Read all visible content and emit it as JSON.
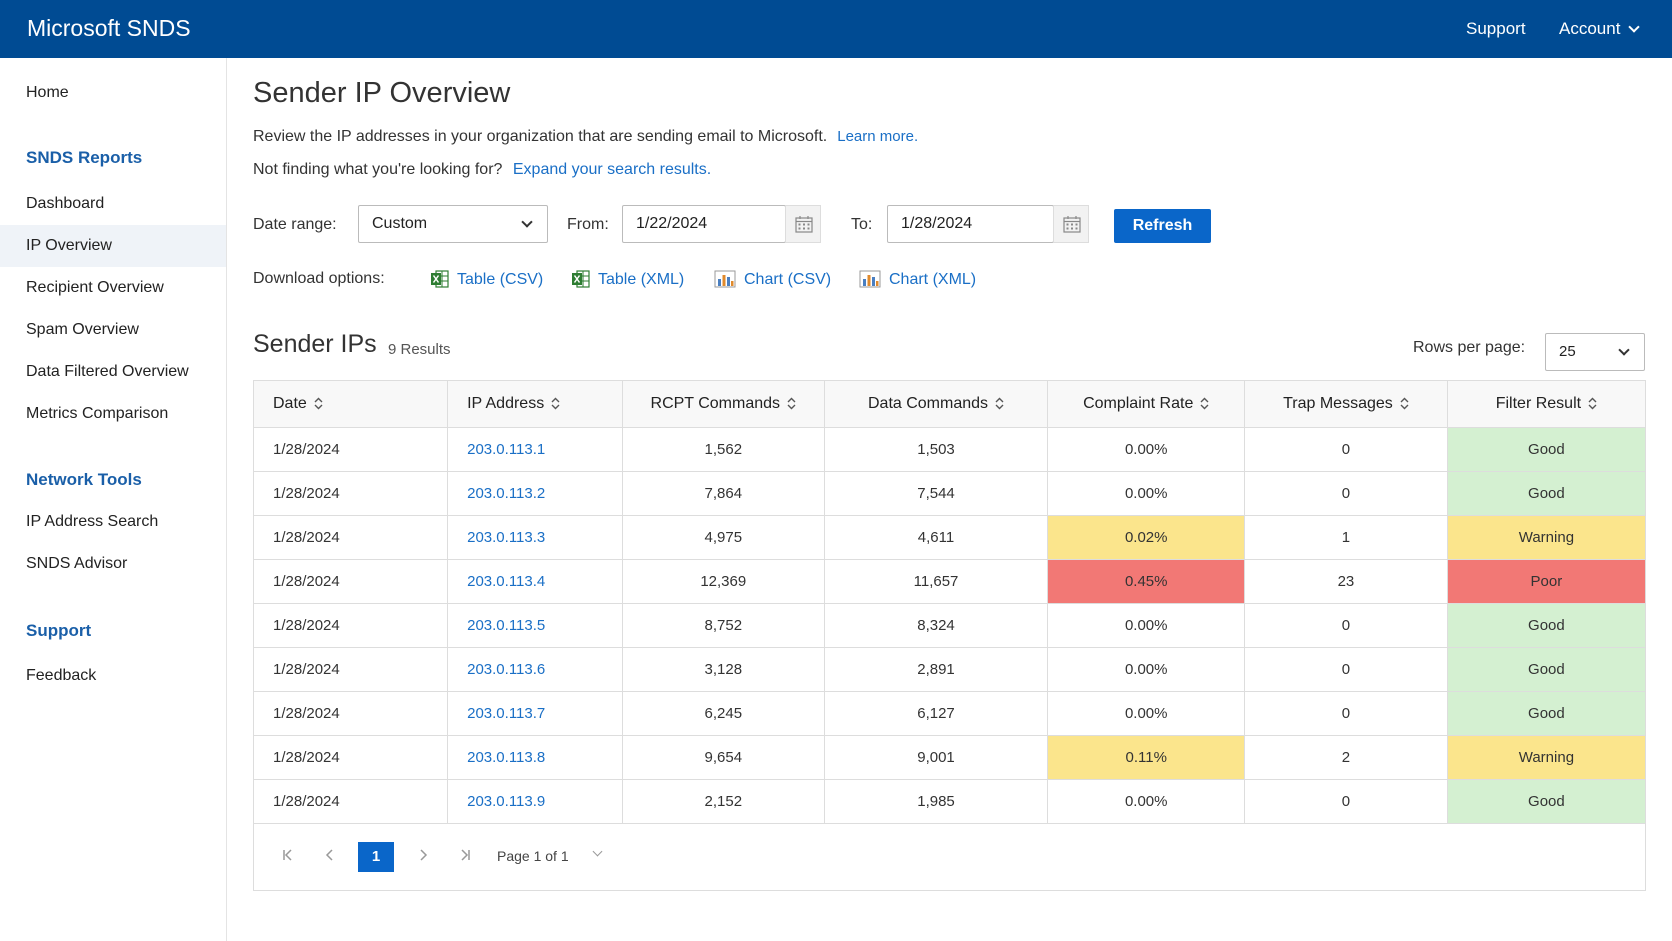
{
  "header": {
    "brand": "Microsoft SNDS",
    "support_label": "Support",
    "account_label": "Account"
  },
  "sidebar": {
    "home": "Home",
    "reports_heading": "SNDS Reports",
    "reports": [
      "Dashboard",
      "IP Overview",
      "Recipient Overview",
      "Spam Overview",
      "Data Filtered Overview",
      "Metrics Comparison"
    ],
    "tools_heading": "Network Tools",
    "tools": [
      "IP Address Search",
      "SNDS Advisor"
    ],
    "support_heading": "Support",
    "support": [
      "Feedback"
    ],
    "active": "IP Overview"
  },
  "main": {
    "title": "Sender IP Overview",
    "description": "Review the IP addresses in your organization that are sending email to Microsoft.",
    "learn_more": "Learn more.",
    "not_finding": "Not finding what you're looking for?",
    "expand_link": "Expand your search results.",
    "date_range_label": "Date range:",
    "date_range_value": "Custom",
    "from_label": "From:",
    "from_value": "1/22/2024",
    "to_label": "To:",
    "to_value": "1/28/2024",
    "refresh_label": "Refresh",
    "download_label": "Download options:",
    "downloads": [
      "Table (CSV)",
      "Table (XML)",
      "Chart (CSV)",
      "Chart (XML)"
    ],
    "section_title": "Sender IPs",
    "result_count": "9 Results",
    "rows_per_page_label": "Rows per page:",
    "rows_per_page_value": "25"
  },
  "table": {
    "columns": [
      "Date",
      "IP Address",
      "RCPT Commands",
      "Data Commands",
      "Complaint Rate",
      "Trap Messages",
      "Filter Result"
    ],
    "rows": [
      {
        "date": "1/28/2024",
        "ip": "203.0.113.1",
        "rcpt": "1,562",
        "data": "1,503",
        "complaint": "0.00%",
        "trap": "0",
        "filter": "Good"
      },
      {
        "date": "1/28/2024",
        "ip": "203.0.113.2",
        "rcpt": "7,864",
        "data": "7,544",
        "complaint": "0.00%",
        "trap": "0",
        "filter": "Good"
      },
      {
        "date": "1/28/2024",
        "ip": "203.0.113.3",
        "rcpt": "4,975",
        "data": "4,611",
        "complaint": "0.02%",
        "trap": "1",
        "filter": "Warning"
      },
      {
        "date": "1/28/2024",
        "ip": "203.0.113.4",
        "rcpt": "12,369",
        "data": "11,657",
        "complaint": "0.45%",
        "trap": "23",
        "filter": "Poor"
      },
      {
        "date": "1/28/2024",
        "ip": "203.0.113.5",
        "rcpt": "8,752",
        "data": "8,324",
        "complaint": "0.00%",
        "trap": "0",
        "filter": "Good"
      },
      {
        "date": "1/28/2024",
        "ip": "203.0.113.6",
        "rcpt": "3,128",
        "data": "2,891",
        "complaint": "0.00%",
        "trap": "0",
        "filter": "Good"
      },
      {
        "date": "1/28/2024",
        "ip": "203.0.113.7",
        "rcpt": "6,245",
        "data": "6,127",
        "complaint": "0.00%",
        "trap": "0",
        "filter": "Good"
      },
      {
        "date": "1/28/2024",
        "ip": "203.0.113.8",
        "rcpt": "9,654",
        "data": "9,001",
        "complaint": "0.11%",
        "trap": "2",
        "filter": "Warning"
      },
      {
        "date": "1/28/2024",
        "ip": "203.0.113.9",
        "rcpt": "2,152",
        "data": "1,985",
        "complaint": "0.00%",
        "trap": "0",
        "filter": "Good"
      }
    ]
  },
  "pagination": {
    "current_page": "1",
    "page_text": "Page 1 of 1"
  },
  "colors": {
    "header_bg": "#004b93",
    "accent": "#0a66c9",
    "good": "#d4f0d1",
    "warning": "#fbe58c",
    "poor": "#f27875"
  },
  "icons": {
    "calendar": "calendar-icon",
    "excel": "excel-icon",
    "chart": "bar-chart-icon",
    "sort": "sort-icon",
    "chevron": "chevron-down-icon"
  }
}
